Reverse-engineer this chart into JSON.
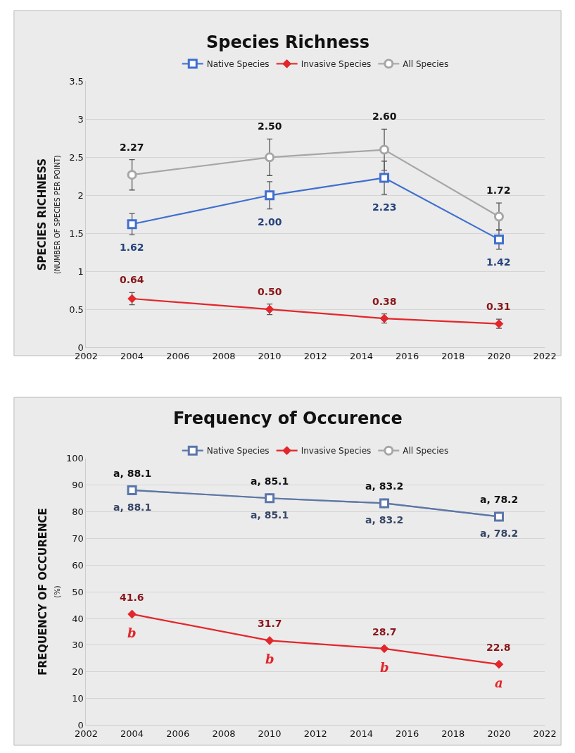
{
  "chart_data": [
    {
      "type": "line",
      "title": "Species Richness",
      "ylabel": "SPECIES RICHNESS\n(NUMBER OF SPECIES PER POINT)",
      "x": [
        2004,
        2010,
        2015,
        2020
      ],
      "xlim": [
        2002,
        2022
      ],
      "xticks": [
        2002,
        2004,
        2006,
        2008,
        2010,
        2012,
        2014,
        2016,
        2018,
        2020,
        2022
      ],
      "ylim": [
        0,
        3.5
      ],
      "yticks": [
        0,
        0.5,
        1,
        1.5,
        2,
        2.5,
        3,
        3.5
      ],
      "grid": "y",
      "legend": "top",
      "line_style": "solid",
      "series": [
        {
          "name": "Native Species",
          "color": "#3f6fcf",
          "marker": "square",
          "values": [
            1.62,
            2.0,
            2.23,
            1.42
          ],
          "errors": [
            0.14,
            0.18,
            0.22,
            0.13
          ],
          "value_labels": [
            "1.62",
            "2.00",
            "2.23",
            "1.42"
          ]
        },
        {
          "name": "Invasive Species",
          "color": "#e3262b",
          "marker": "diamond",
          "values": [
            0.64,
            0.5,
            0.38,
            0.31
          ],
          "errors": [
            0.08,
            0.07,
            0.06,
            0.06
          ],
          "value_labels": [
            "0.64",
            "0.50",
            "0.38",
            "0.31"
          ]
        },
        {
          "name": "All Species",
          "color": "#a6a6a6",
          "marker": "circle",
          "values": [
            2.27,
            2.5,
            2.6,
            1.72
          ],
          "errors": [
            0.2,
            0.24,
            0.27,
            0.18
          ],
          "value_labels": [
            "2.27",
            "2.50",
            "2.60",
            "1.72"
          ]
        }
      ]
    },
    {
      "type": "line",
      "title": "Frequency of Occurence",
      "ylabel": "FREQUENCY OF OCCURENCE\n(%)",
      "x": [
        2004,
        2010,
        2015,
        2020
      ],
      "xlim": [
        2002,
        2022
      ],
      "xticks": [
        2002,
        2004,
        2006,
        2008,
        2010,
        2012,
        2014,
        2016,
        2018,
        2020,
        2022
      ],
      "ylim": [
        0,
        100
      ],
      "yticks": [
        0,
        10,
        20,
        30,
        40,
        50,
        60,
        70,
        80,
        90,
        100
      ],
      "grid": "y",
      "legend": "top",
      "line_style": "solid",
      "series": [
        {
          "name": "Native Species",
          "color": "#5b76aa",
          "marker": "square",
          "values": [
            88.1,
            85.1,
            83.2,
            78.2
          ],
          "value_labels": [
            "a, 88.1",
            "a, 85.1",
            "a, 83.2",
            "a, 78.2"
          ]
        },
        {
          "name": "Invasive Species",
          "color": "#e3262b",
          "marker": "diamond",
          "values": [
            41.6,
            31.7,
            28.7,
            22.8
          ],
          "value_labels": [
            "41.6",
            "31.7",
            "28.7",
            "22.8"
          ]
        },
        {
          "name": "All Species",
          "color": "#a6a6a6",
          "marker": "circle",
          "values": [
            88.1,
            85.1,
            83.2,
            78.2
          ],
          "value_labels": [
            "a, 88.1",
            "a, 85.1",
            "a, 83.2",
            "a, 78.2"
          ]
        }
      ],
      "annotations": [
        {
          "text": "b",
          "x": 2004,
          "y": 41.6
        },
        {
          "text": "b",
          "x": 2010,
          "y": 31.7
        },
        {
          "text": "b",
          "x": 2015,
          "y": 28.7
        },
        {
          "text": "a",
          "x": 2020,
          "y": 22.8
        }
      ]
    }
  ]
}
